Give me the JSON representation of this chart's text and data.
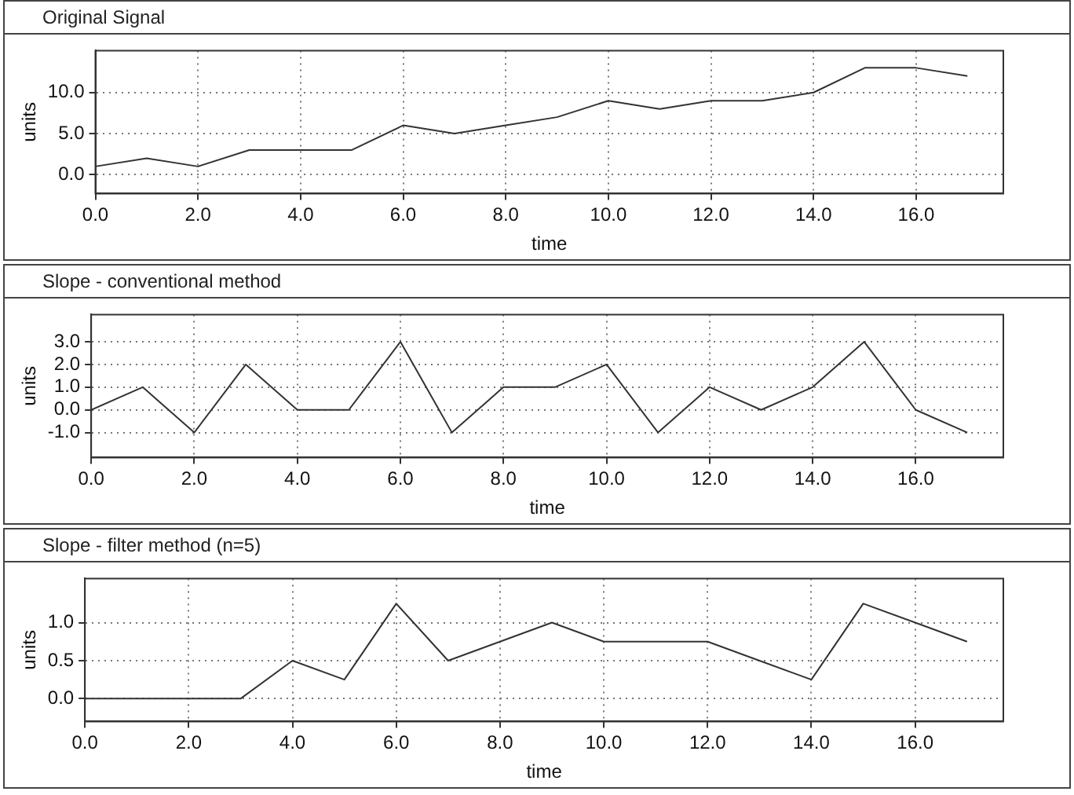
{
  "chart_data": [
    {
      "type": "line",
      "title": "Original Signal",
      "xlabel": "time",
      "ylabel": "units",
      "x": [
        0,
        1,
        2,
        3,
        4,
        5,
        6,
        7,
        8,
        9,
        10,
        11,
        12,
        13,
        14,
        15,
        16,
        17
      ],
      "series": [
        {
          "color": "#333333",
          "values": [
            1,
            2,
            1,
            3,
            3,
            3,
            6,
            5,
            6,
            7,
            9,
            8,
            9,
            9,
            10,
            13,
            13,
            12
          ]
        }
      ],
      "xlim": [
        0,
        17.7
      ],
      "xticks": [
        {
          "value": 0,
          "label": "0.0"
        },
        {
          "value": 2,
          "label": "2.0"
        },
        {
          "value": 4,
          "label": "4.0"
        },
        {
          "value": 6,
          "label": "6.0"
        },
        {
          "value": 8,
          "label": "8.0"
        },
        {
          "value": 10,
          "label": "10.0"
        },
        {
          "value": 12,
          "label": "12.0"
        },
        {
          "value": 14,
          "label": "14.0"
        },
        {
          "value": 16,
          "label": "16.0"
        }
      ],
      "ylim": [
        -2.3,
        15.1
      ],
      "yticks": [
        {
          "value": 0,
          "label": "0.0"
        },
        {
          "value": 5,
          "label": "5.0"
        },
        {
          "value": 10,
          "label": "10.0"
        }
      ],
      "grid": true,
      "legend": false,
      "marker": "none",
      "line_style": "solid"
    },
    {
      "type": "line",
      "title": "Slope - conventional method",
      "xlabel": "time",
      "ylabel": "units",
      "x": [
        0,
        1,
        2,
        3,
        4,
        5,
        6,
        7,
        8,
        9,
        10,
        11,
        12,
        13,
        14,
        15,
        16,
        17
      ],
      "series": [
        {
          "color": "#333333",
          "values": [
            0,
            1,
            -1,
            2,
            0,
            0,
            3,
            -1,
            1,
            1,
            2,
            -1,
            1,
            0,
            1,
            3,
            0,
            -1
          ]
        }
      ],
      "xlim": [
        0,
        17.7
      ],
      "xticks": [
        {
          "value": 0,
          "label": "0.0"
        },
        {
          "value": 2,
          "label": "2.0"
        },
        {
          "value": 4,
          "label": "4.0"
        },
        {
          "value": 6,
          "label": "6.0"
        },
        {
          "value": 8,
          "label": "8.0"
        },
        {
          "value": 10,
          "label": "10.0"
        },
        {
          "value": 12,
          "label": "12.0"
        },
        {
          "value": 14,
          "label": "14.0"
        },
        {
          "value": 16,
          "label": "16.0"
        }
      ],
      "ylim": [
        -2.1,
        4.2
      ],
      "yticks": [
        {
          "value": -1,
          "label": "-1.0"
        },
        {
          "value": 0,
          "label": "0.0"
        },
        {
          "value": 1,
          "label": "1.0"
        },
        {
          "value": 2,
          "label": "2.0"
        },
        {
          "value": 3,
          "label": "3.0"
        }
      ],
      "grid": true,
      "legend": false,
      "marker": "none",
      "line_style": "solid"
    },
    {
      "type": "line",
      "title": "Slope - filter method (n=5)",
      "xlabel": "time",
      "ylabel": "units",
      "x": [
        0,
        1,
        2,
        3,
        4,
        5,
        6,
        7,
        8,
        9,
        10,
        11,
        12,
        13,
        14,
        15,
        16,
        17
      ],
      "series": [
        {
          "color": "#333333",
          "values": [
            0,
            0,
            0,
            0,
            0.5,
            0.25,
            1.25,
            0.5,
            0.75,
            1,
            0.75,
            0.75,
            0.75,
            0.5,
            0.25,
            1.25,
            1,
            0.75
          ]
        }
      ],
      "xlim": [
        0,
        17.7
      ],
      "xticks": [
        {
          "value": 0,
          "label": "0.0"
        },
        {
          "value": 2,
          "label": "2.0"
        },
        {
          "value": 4,
          "label": "4.0"
        },
        {
          "value": 6,
          "label": "6.0"
        },
        {
          "value": 8,
          "label": "8.0"
        },
        {
          "value": 10,
          "label": "10.0"
        },
        {
          "value": 12,
          "label": "12.0"
        },
        {
          "value": 14,
          "label": "14.0"
        },
        {
          "value": 16,
          "label": "16.0"
        }
      ],
      "ylim": [
        -0.3,
        1.58
      ],
      "yticks": [
        {
          "value": 0,
          "label": "0.0"
        },
        {
          "value": 0.5,
          "label": "0.5"
        },
        {
          "value": 1,
          "label": "1.0"
        }
      ],
      "grid": true,
      "legend": false,
      "marker": "none",
      "line_style": "solid"
    }
  ]
}
